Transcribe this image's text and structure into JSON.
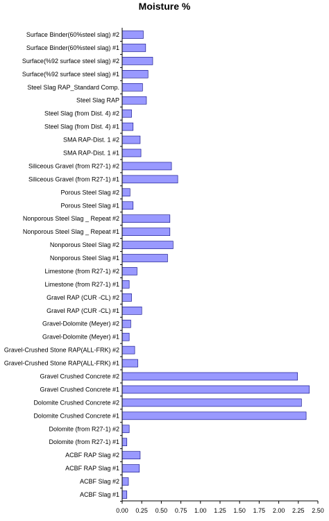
{
  "chart_data": {
    "type": "bar",
    "orientation": "horizontal",
    "title": "Moisture %",
    "xlabel": "",
    "ylabel": "",
    "xlim": [
      0,
      2.5
    ],
    "xticks": [
      "0.00",
      "0.25",
      "0.50",
      "0.75",
      "1.00",
      "1.25",
      "1.50",
      "1.75",
      "2.00",
      "2.25",
      "2.50"
    ],
    "grid": false,
    "legend": "none",
    "colors": {
      "bar_fill": "#9999ff",
      "bar_stroke": "#000080"
    },
    "categories": [
      "Surface Binder(60%steel slag) #2",
      "Surface Binder(60%steel slag) #1",
      "Surface(%92 surface steel slag) #2",
      "Surface(%92 surface steel slag) #1",
      "Steel Slag RAP_Standard Comp.",
      "Steel Slag RAP",
      "Steel Slag (from Dist. 4) #2",
      "Steel Slag (from Dist. 4) #1",
      "SMA RAP-Dist. 1 #2",
      "SMA RAP-Dist. 1 #1",
      "Siliceous Gravel (from R27-1) #2",
      "Siliceous Gravel (from R27-1) #1",
      "Porous Steel Slag #2",
      "Porous Steel Slag #1",
      "Nonporous Steel Slag _ Repeat #2",
      "Nonporous Steel Slag _ Repeat #1",
      "Nonporous Steel Slag #2",
      "Nonporous Steel Slag #1",
      "Limestone (from R27-1) #2",
      "Limestone (from R27-1) #1",
      "Gravel RAP (CUR -CL) #2",
      "Gravel RAP (CUR -CL) #1",
      "Gravel-Dolomite (Meyer) #2",
      "Gravel-Dolomite (Meyer) #1",
      "Gravel-Crushed Stone RAP(ALL-FRK) #2",
      "Gravel-Crushed Stone RAP(ALL-FRK) #1",
      "Gravel Crushed Concrete #2",
      "Gravel Crushed Concrete #1",
      "Dolomite Crushed Concrete #2",
      "Dolomite Crushed Concrete #1",
      "Dolomite (from R27-1) #2",
      "Dolomite (from R27-1) #1",
      "ACBF RAP Slag #2",
      "ACBF RAP Slag #1",
      "ACBF Slag #2",
      "ACBF Slag #1"
    ],
    "values": [
      0.27,
      0.3,
      0.39,
      0.33,
      0.26,
      0.31,
      0.12,
      0.14,
      0.23,
      0.24,
      0.63,
      0.71,
      0.1,
      0.14,
      0.61,
      0.61,
      0.65,
      0.58,
      0.19,
      0.09,
      0.12,
      0.25,
      0.11,
      0.09,
      0.16,
      0.2,
      2.24,
      2.39,
      2.29,
      2.35,
      0.09,
      0.06,
      0.23,
      0.22,
      0.08,
      0.06
    ]
  }
}
